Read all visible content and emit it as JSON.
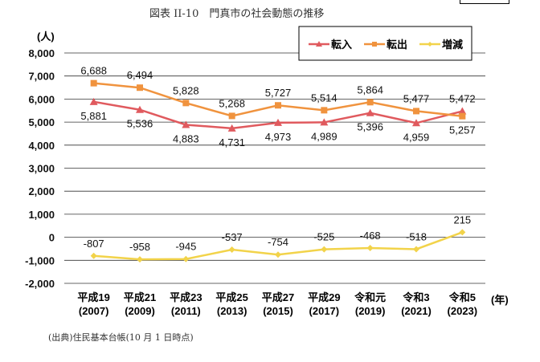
{
  "title": "図表 II-10　門真市の社会動態の推移",
  "source": "(出典)住民基本台帳(10 月 1 日時点)",
  "chart_data": {
    "type": "line",
    "ylabel": "(人)",
    "xlabel": "(年)",
    "ylim": [
      -2000,
      8000
    ],
    "yticks": [
      8000,
      7000,
      6000,
      5000,
      4000,
      3000,
      2000,
      1000,
      0,
      -1000,
      -2000
    ],
    "ytick_labels": [
      "8,000",
      "7,000",
      "6,000",
      "5,000",
      "4,000",
      "3,000",
      "2,000",
      "1,000",
      "0",
      "-1,000",
      "-2,000"
    ],
    "categories": [
      [
        "平成19",
        "(2007)"
      ],
      [
        "平成21",
        "(2009)"
      ],
      [
        "平成23",
        "(2011)"
      ],
      [
        "平成25",
        "(2013)"
      ],
      [
        "平成27",
        "(2015)"
      ],
      [
        "平成29",
        "(2017)"
      ],
      [
        "令和元",
        "(2019)"
      ],
      [
        "令和3",
        "(2021)"
      ],
      [
        "令和5",
        "(2023)"
      ]
    ],
    "legend_position": "top-right",
    "grid": true,
    "series": [
      {
        "name": "転入",
        "color": "#e05a5e",
        "marker": "triangle",
        "values": [
          5881,
          5536,
          4883,
          4731,
          4973,
          4989,
          5396,
          4959,
          5472
        ],
        "labels": [
          "5,881",
          "5,536",
          "4,883",
          "4,731",
          "4,973",
          "4,989",
          "5,396",
          "4,959",
          "5,472"
        ],
        "label_pos": [
          "below",
          "below",
          "below",
          "below",
          "below",
          "below",
          "below",
          "below",
          "above"
        ]
      },
      {
        "name": "転出",
        "color": "#f0933e",
        "marker": "square",
        "values": [
          6688,
          6494,
          5828,
          5268,
          5727,
          5514,
          5864,
          5477,
          5257
        ],
        "labels": [
          "6,688",
          "6,494",
          "5,828",
          "5,268",
          "5,727",
          "5,514",
          "5,864",
          "5,477",
          "5,257"
        ],
        "label_pos": [
          "above",
          "above",
          "above",
          "above",
          "above",
          "above",
          "above",
          "above",
          "below"
        ]
      },
      {
        "name": "増減",
        "color": "#f2d34a",
        "marker": "diamond",
        "values": [
          -807,
          -958,
          -945,
          -537,
          -754,
          -525,
          -468,
          -518,
          215
        ],
        "labels": [
          "-807",
          "-958",
          "-945",
          "-537",
          "-754",
          "-525",
          "-468",
          "-518",
          "215"
        ],
        "label_pos": [
          "above",
          "above",
          "above",
          "above",
          "above",
          "above",
          "above",
          "above",
          "above"
        ]
      }
    ]
  }
}
